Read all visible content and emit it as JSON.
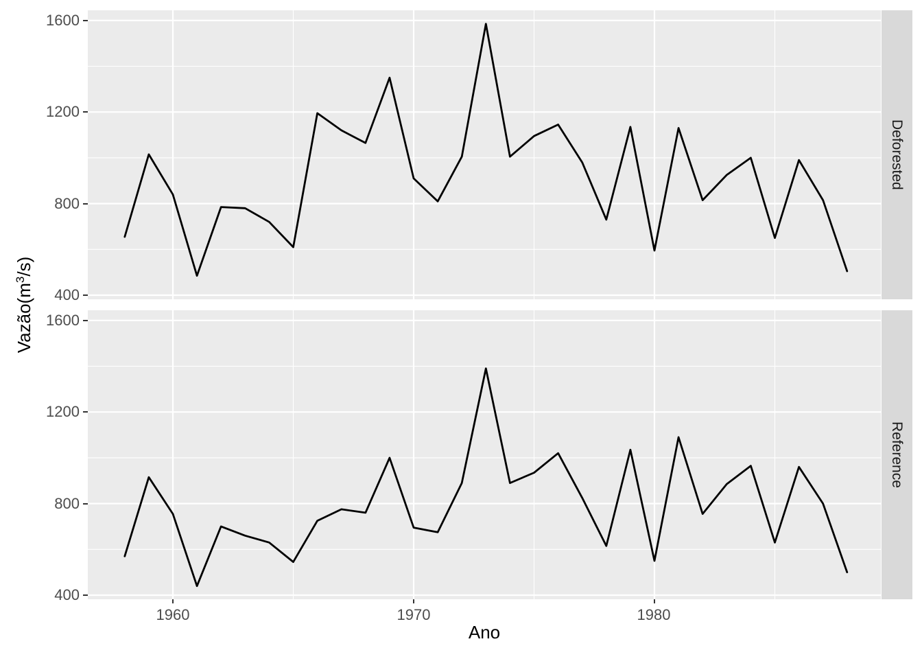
{
  "chart_data": {
    "type": "line",
    "title": "",
    "xlabel": "Ano",
    "ylabel": "Vazão(m³/s)",
    "ylabel_parts": {
      "pre": "Vazão(m",
      "sup": "3",
      "post": "/s)"
    },
    "facets": [
      "Deforested",
      "Reference"
    ],
    "facet_strip_side": "right",
    "x": [
      1958,
      1959,
      1960,
      1961,
      1962,
      1963,
      1964,
      1965,
      1966,
      1967,
      1968,
      1969,
      1970,
      1971,
      1972,
      1973,
      1974,
      1975,
      1976,
      1977,
      1978,
      1979,
      1980,
      1981,
      1982,
      1983,
      1984,
      1985,
      1986,
      1987,
      1988
    ],
    "series": [
      {
        "name": "Deforested",
        "values": [
          655,
          1015,
          840,
          485,
          785,
          780,
          720,
          610,
          1195,
          1120,
          1065,
          1350,
          910,
          810,
          1005,
          1585,
          1005,
          1095,
          1145,
          980,
          730,
          1135,
          595,
          1130,
          815,
          925,
          1000,
          650,
          990,
          815,
          505
        ]
      },
      {
        "name": "Reference",
        "values": [
          570,
          915,
          755,
          440,
          700,
          660,
          630,
          545,
          725,
          775,
          760,
          1000,
          695,
          675,
          890,
          1390,
          890,
          935,
          1020,
          825,
          615,
          1035,
          550,
          1090,
          755,
          885,
          965,
          630,
          960,
          800,
          500
        ]
      }
    ],
    "xticks": [
      1960,
      1970,
      1980
    ],
    "xtick_labels": [
      "1960",
      "1970",
      "1980"
    ],
    "yticks": [
      1600,
      1200,
      800,
      400
    ],
    "ytick_labels": [
      "1600",
      "1200",
      "800",
      "400"
    ],
    "minor_xticks": [
      1965,
      1975,
      1985
    ],
    "minor_yticks": [
      1400,
      1000,
      600
    ],
    "xlim": [
      1956.5,
      1989.5
    ],
    "ylim": [
      385,
      1645
    ],
    "grid": "major-and-minor-white",
    "legend": "none",
    "colors": {
      "line": "#000000",
      "panel_bg": "#EBEBEB",
      "strip_bg": "#D9D9D9",
      "grid": "#FFFFFF",
      "axis_text": "#4D4D4D",
      "tick_mark": "#333333",
      "strip_text": "#1A1A1A",
      "axis_title": "#000000"
    }
  }
}
